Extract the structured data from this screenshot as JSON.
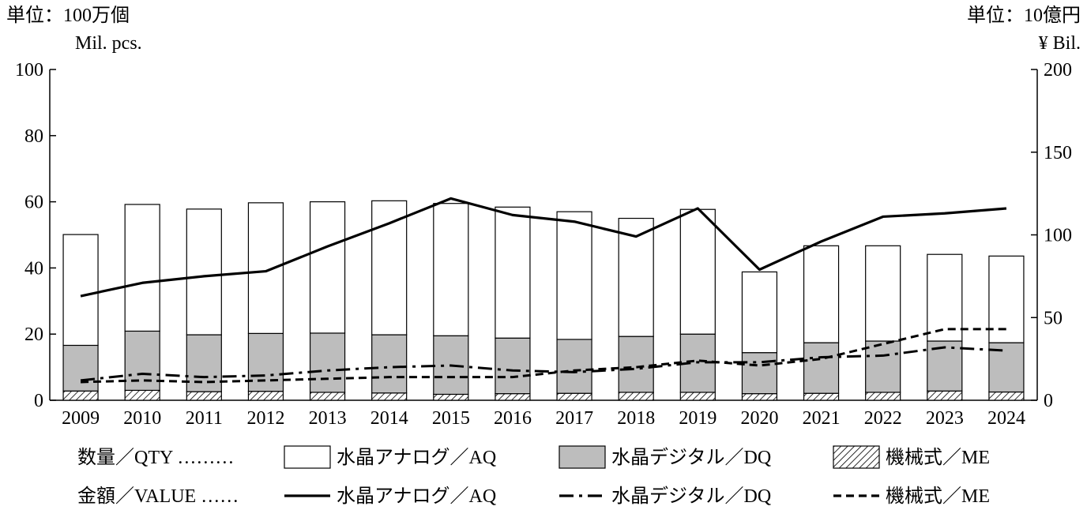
{
  "chart_data": {
    "type": "bar",
    "left_unit": [
      "単位：100万個",
      "Mil. pcs."
    ],
    "right_unit": [
      "単位：10億円",
      "¥ Bil."
    ],
    "x": [
      "2009",
      "2010",
      "2011",
      "2012",
      "2013",
      "2014",
      "2015",
      "2016",
      "2017",
      "2018",
      "2019",
      "2020",
      "2021",
      "2022",
      "2023",
      "2024"
    ],
    "y_left": {
      "lim": [
        0,
        100
      ],
      "ticks": [
        "0",
        "20",
        "40",
        "60",
        "80",
        "100"
      ]
    },
    "y_right": {
      "lim": [
        0,
        200
      ],
      "ticks": [
        "0",
        "50",
        "100",
        "150",
        "200"
      ]
    },
    "qty_label": "数量／QTY ………",
    "value_label": "金額／VALUE ……",
    "bar_series": [
      {
        "name": "水晶アナログ／AQ",
        "fill": "#ffffff",
        "values": [
          33.5,
          38.3,
          38.0,
          39.5,
          39.7,
          40.5,
          40.0,
          39.6,
          38.6,
          35.7,
          37.7,
          24.4,
          29.3,
          28.8,
          26.2,
          26.2
        ]
      },
      {
        "name": "水晶デジタル／DQ",
        "fill": "#bdbdbd",
        "values": [
          13.8,
          17.9,
          17.2,
          17.5,
          17.9,
          17.6,
          17.7,
          16.8,
          16.3,
          16.9,
          17.6,
          12.4,
          15.3,
          15.5,
          15.1,
          14.9
        ]
      },
      {
        "name": "機械式／ME",
        "fill": "hatch",
        "values": [
          2.8,
          3.0,
          2.6,
          2.7,
          2.4,
          2.2,
          1.8,
          2.0,
          2.1,
          2.4,
          2.4,
          2.0,
          2.1,
          2.4,
          2.8,
          2.5
        ]
      }
    ],
    "line_series": [
      {
        "name": "水晶アナログ／AQ",
        "dash": "solid",
        "values": [
          63,
          71,
          75,
          78,
          93,
          107,
          122,
          112,
          108,
          99,
          116,
          79,
          96,
          111,
          113,
          116
        ]
      },
      {
        "name": "水晶デジタル／DQ",
        "dash": "dashdot",
        "values": [
          12,
          16,
          14,
          15,
          18,
          20,
          21,
          18,
          17,
          19,
          23,
          23,
          26,
          27,
          32,
          30
        ]
      },
      {
        "name": "機械式／ME",
        "dash": "dashed",
        "values": [
          11,
          12,
          11,
          12,
          13,
          14,
          14,
          14,
          18,
          20,
          24,
          21,
          25,
          34,
          43,
          43
        ]
      }
    ]
  }
}
